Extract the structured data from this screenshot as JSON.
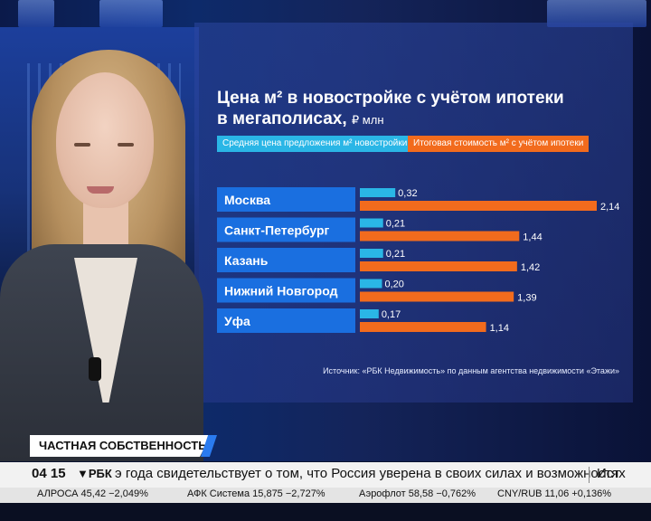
{
  "chart_data": {
    "type": "bar",
    "title": "Цена м² в новостройке с учётом ипотеки в мегаполисах,",
    "unit": "₽ млн",
    "categories": [
      "Москва",
      "Санкт-Петербург",
      "Казань",
      "Нижний Новгород",
      "Уфа"
    ],
    "series": [
      {
        "name": "Средняя цена предложения м² новостройки",
        "color": "#2ab6e6",
        "values": [
          0.32,
          0.21,
          0.21,
          0.2,
          0.17
        ],
        "labels": [
          "0,32",
          "0,21",
          "0,21",
          "0,20",
          "0,17"
        ]
      },
      {
        "name": "Итоговая стоимость м² с учётом ипотеки",
        "color": "#f26b1d",
        "values": [
          2.14,
          1.44,
          1.42,
          1.39,
          1.14
        ],
        "labels": [
          "2,14",
          "1,44",
          "1,42",
          "1,39",
          "1,14"
        ]
      }
    ],
    "source": "Источник: «РБК Недвижимость» по данным агентства недвижимости «Этажи»"
  },
  "category_label_color": "#1a6fe0",
  "section_tag": "ЧАСТНАЯ СОБСТВЕННОСТЬ",
  "ticker": {
    "time": "04 15",
    "brand": "РБК",
    "headline": "э года свидетельствует о том, что Россия уверена в своих силах и возможностях",
    "next": "Ист",
    "quotes": [
      "АЛРОСА 45,42 −2,049%",
      "АФК Система 15,875 −2,727%",
      "Аэрофлот 58,58 −0,762%",
      "CNY/RUB 11,06 +0,136%"
    ]
  }
}
